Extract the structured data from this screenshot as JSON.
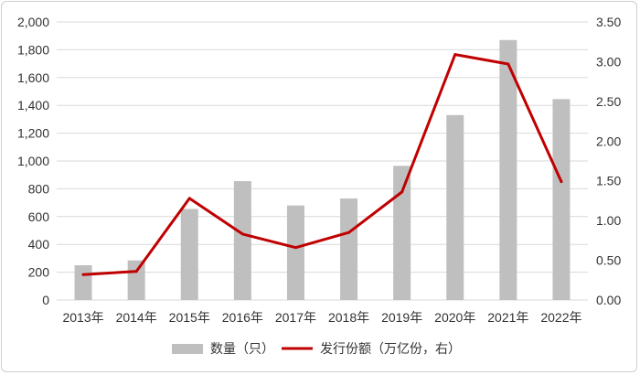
{
  "chart_data": {
    "type": "bar+line",
    "categories": [
      "2013年",
      "2014年",
      "2015年",
      "2016年",
      "2017年",
      "2018年",
      "2019年",
      "2020年",
      "2021年",
      "2022年"
    ],
    "series": [
      {
        "name": "数量（只）",
        "type": "bar",
        "axis": "left",
        "color": "#bfbfbf",
        "values": [
          250,
          285,
          655,
          855,
          680,
          730,
          965,
          1330,
          1870,
          1445
        ]
      },
      {
        "name": "发行份额（万亿份，右）",
        "type": "line",
        "axis": "right",
        "color": "#c00000",
        "values": [
          0.32,
          0.36,
          1.28,
          0.83,
          0.66,
          0.85,
          1.36,
          3.09,
          2.97,
          1.49
        ]
      }
    ],
    "y_left": {
      "min": 0,
      "max": 2000,
      "step": 200,
      "ticks": [
        "0",
        "200",
        "400",
        "600",
        "800",
        "1,000",
        "1,200",
        "1,400",
        "1,600",
        "1,800",
        "2,000"
      ]
    },
    "y_right": {
      "min": 0,
      "max": 3.5,
      "step": 0.5,
      "ticks": [
        "0.00",
        "0.50",
        "1.00",
        "1.50",
        "2.00",
        "2.50",
        "3.00",
        "3.50"
      ]
    },
    "grid": true,
    "legend_position": "bottom"
  }
}
